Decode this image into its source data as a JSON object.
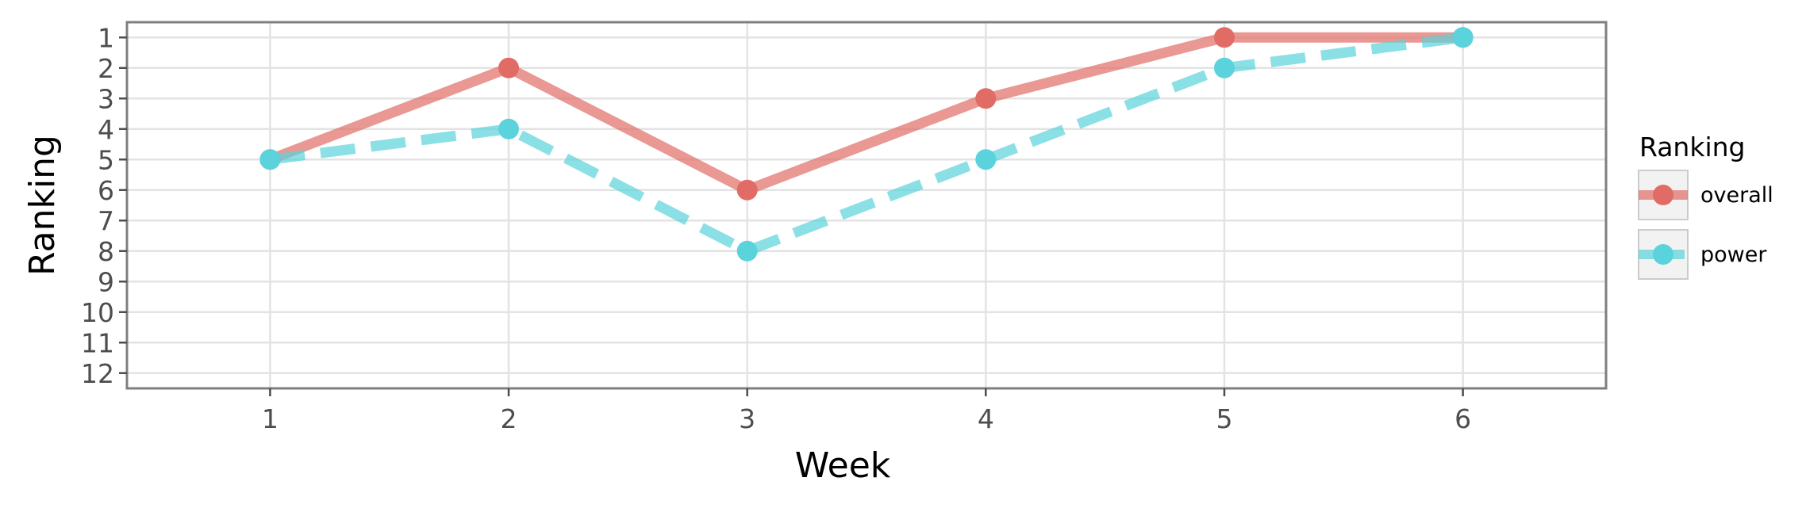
{
  "chart_data": {
    "type": "line",
    "xlabel": "Week",
    "ylabel": "Ranking",
    "x": [
      1,
      2,
      3,
      4,
      5,
      6
    ],
    "x_ticks": [
      "1",
      "2",
      "3",
      "4",
      "5",
      "6"
    ],
    "y_ticks": [
      "1",
      "2",
      "3",
      "4",
      "5",
      "6",
      "7",
      "8",
      "9",
      "10",
      "11",
      "12"
    ],
    "xlim": [
      0.4,
      6.6
    ],
    "ylim": [
      0.5,
      12.5
    ],
    "y_reversed": true,
    "grid": true,
    "legend": {
      "title": "Ranking",
      "position": "right"
    },
    "series": [
      {
        "name": "overall",
        "values": [
          5,
          2,
          6,
          3,
          1,
          1
        ],
        "color": "#e06c65",
        "style": "solid"
      },
      {
        "name": "power",
        "values": [
          5,
          4,
          8,
          5,
          2,
          1
        ],
        "color": "#5ad3dc",
        "style": "dashed"
      }
    ]
  }
}
